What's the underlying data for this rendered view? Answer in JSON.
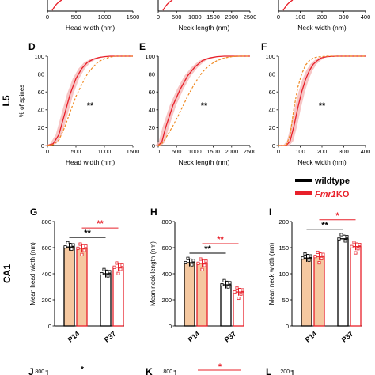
{
  "colors": {
    "wt": "#000000",
    "ko": "#e8202a",
    "ko_band": "#f5b8b8",
    "p14_fill": "#f5c8a0",
    "orange_dash": "#f08a24"
  },
  "figure": {
    "row_labels": {
      "l5": "L5",
      "ca1": "CA1"
    },
    "legend": {
      "wt": "wildtype",
      "ko_italic": "Fmr1",
      "ko_rest": "KO"
    }
  },
  "chart_data": [
    {
      "panel": "top-left",
      "type": "line",
      "xlabel": "Head width (nm)",
      "xlim": [
        0,
        1500
      ],
      "ticks_x": [
        "0",
        "500",
        "1000",
        "1500"
      ]
    },
    {
      "panel": "top-middle",
      "type": "line",
      "xlabel": "Neck length (nm)",
      "xlim": [
        0,
        2500
      ],
      "ticks_x": [
        "0",
        "500",
        "1000",
        "1500",
        "2000",
        "2500"
      ]
    },
    {
      "panel": "top-right",
      "type": "line",
      "xlabel": "Neck width (nm)",
      "xlim": [
        0,
        450
      ],
      "ticks_x": [
        "0",
        "100",
        "200",
        "300",
        "400"
      ]
    },
    {
      "panel": "D",
      "type": "line",
      "label": "D",
      "xlabel": "Head width (nm)",
      "ylabel": "% of spines",
      "xlim": [
        0,
        1500
      ],
      "ylim": [
        0,
        100
      ],
      "ticks_x": [
        "0",
        "500",
        "1000",
        "1500"
      ],
      "ticks_y": [
        "0",
        "20",
        "40",
        "60",
        "80",
        "100"
      ],
      "sig": "**",
      "series": [
        {
          "style": "solid",
          "x": [
            0,
            100,
            200,
            300,
            400,
            500,
            600,
            700,
            800,
            900,
            1000,
            1100,
            1200,
            1300,
            1500
          ],
          "y": [
            0,
            2,
            12,
            35,
            58,
            75,
            86,
            93,
            96.5,
            98.5,
            99.5,
            100,
            100,
            100,
            100
          ]
        },
        {
          "style": "dashed",
          "x": [
            0,
            100,
            200,
            300,
            400,
            500,
            600,
            700,
            800,
            900,
            1000,
            1100,
            1200,
            1300,
            1500
          ],
          "y": [
            0,
            1,
            6,
            20,
            38,
            55,
            68,
            80,
            88,
            94,
            97,
            99,
            100,
            100,
            100
          ]
        }
      ]
    },
    {
      "panel": "E",
      "type": "line",
      "label": "E",
      "xlabel": "Neck length (nm)",
      "xlim": [
        0,
        2500
      ],
      "ylim": [
        0,
        100
      ],
      "ticks_x": [
        "0",
        "500",
        "1000",
        "1500",
        "2000",
        "2500"
      ],
      "ticks_y": [
        "0",
        "20",
        "40",
        "60",
        "80",
        "100"
      ],
      "sig": "**",
      "series": [
        {
          "style": "solid",
          "x": [
            0,
            100,
            200,
            400,
            600,
            800,
            1000,
            1200,
            1400,
            1600,
            1800,
            2000,
            2200,
            2500
          ],
          "y": [
            0,
            4,
            20,
            45,
            63,
            78,
            88,
            95,
            98,
            99.5,
            100,
            100,
            100,
            100
          ]
        },
        {
          "style": "dashed",
          "x": [
            0,
            100,
            200,
            400,
            600,
            800,
            1000,
            1200,
            1400,
            1600,
            1800,
            2000,
            2200,
            2500
          ],
          "y": [
            0,
            2,
            8,
            22,
            38,
            55,
            70,
            82,
            90,
            95,
            98,
            99.5,
            100,
            100
          ]
        }
      ]
    },
    {
      "panel": "F",
      "type": "line",
      "label": "F",
      "xlabel": "Neck width (nm)",
      "xlim": [
        0,
        450
      ],
      "ylim": [
        0,
        100
      ],
      "ticks_x": [
        "0",
        "100",
        "200",
        "300",
        "400"
      ],
      "ticks_y": [
        "0",
        "20",
        "40",
        "60",
        "80",
        "100"
      ],
      "sig": "**",
      "series": [
        {
          "style": "solid",
          "x": [
            0,
            40,
            60,
            80,
            100,
            120,
            140,
            160,
            180,
            200,
            220,
            250,
            300,
            450
          ],
          "y": [
            0,
            0,
            5,
            22,
            42,
            60,
            74,
            84,
            91,
            95,
            98,
            99.5,
            100,
            100
          ]
        },
        {
          "style": "dashed",
          "x": [
            0,
            40,
            60,
            80,
            100,
            120,
            140,
            160,
            180,
            200,
            220,
            250,
            300,
            450
          ],
          "y": [
            0,
            0,
            12,
            42,
            65,
            80,
            90,
            95,
            98,
            99,
            99.5,
            100,
            100,
            100
          ]
        }
      ]
    },
    {
      "panel": "G",
      "type": "bar",
      "label": "G",
      "row": "CA1",
      "ylabel": "Mean head width (nm)",
      "ylim": [
        0,
        800
      ],
      "ticks_y": [
        "0",
        "200",
        "400",
        "600",
        "800"
      ],
      "categories": [
        "P14",
        "P37"
      ],
      "series": [
        {
          "name": "wildtype",
          "values": [
            605,
            400
          ]
        },
        {
          "name": "Fmr1KO",
          "values": [
            595,
            450
          ]
        }
      ],
      "sig_wt": "**",
      "sig_ko": "**"
    },
    {
      "panel": "H",
      "type": "bar",
      "label": "H",
      "ylabel": "Mean neck length (nm)",
      "ylim": [
        0,
        800
      ],
      "ticks_y": [
        "0",
        "200",
        "400",
        "600",
        "800"
      ],
      "categories": [
        "P14",
        "P37"
      ],
      "series": [
        {
          "name": "wildtype",
          "values": [
            485,
            315
          ]
        },
        {
          "name": "Fmr1KO",
          "values": [
            480,
            260
          ]
        }
      ],
      "sig_wt": "**",
      "sig_ko": "**"
    },
    {
      "panel": "I",
      "type": "bar",
      "label": "I",
      "ylabel": "Mean neck width (nm)",
      "ylim": [
        0,
        200
      ],
      "ticks_y": [
        "0",
        "50",
        "100",
        "150",
        "200"
      ],
      "categories": [
        "P14",
        "P37"
      ],
      "series": [
        {
          "name": "wildtype",
          "values": [
            130,
            167
          ]
        },
        {
          "name": "Fmr1KO",
          "values": [
            133,
            152
          ]
        }
      ],
      "sig_wt": "**",
      "sig_ko": "*"
    },
    {
      "panel": "J",
      "type": "bar",
      "label": "J",
      "ticks_y": [
        "800"
      ],
      "sig_wt": "*"
    },
    {
      "panel": "K",
      "type": "bar",
      "label": "K",
      "ticks_y": [
        "800"
      ],
      "sig_ko": "*"
    },
    {
      "panel": "L",
      "type": "bar",
      "label": "L",
      "ticks_y": [
        "200"
      ]
    }
  ]
}
